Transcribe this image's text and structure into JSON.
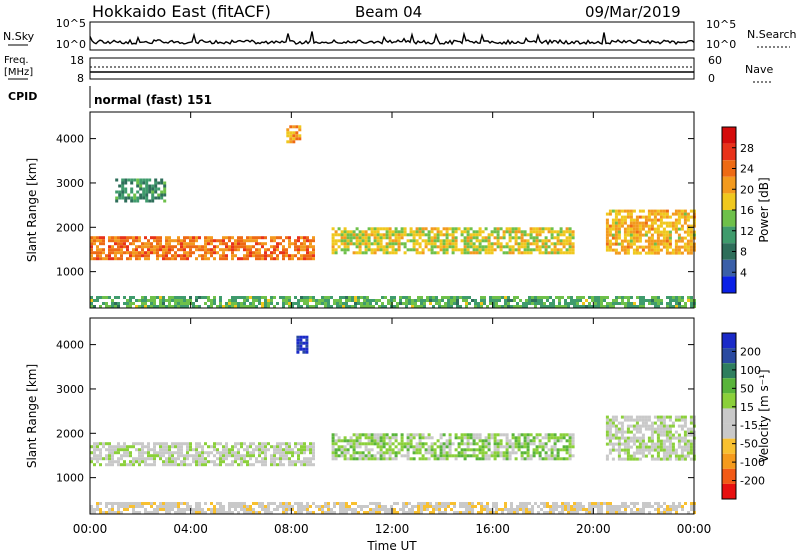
{
  "header": {
    "station": "Hokkaido East (fitACF)",
    "beam": "Beam 04",
    "date": "09/Mar/2019"
  },
  "panels": {
    "nsky": {
      "label": "N.Sky",
      "ticks": [
        "10^5",
        "10^0"
      ],
      "right_label": "N.Search",
      "right_ticks": [
        "10^5",
        "10^0"
      ]
    },
    "freq": {
      "label1": "Freq.",
      "label2": "[MHz]",
      "ticks": [
        "18",
        "8"
      ],
      "right_label": "Nave",
      "right_ticks": [
        "60",
        "0"
      ]
    },
    "cpid": {
      "label": "CPID",
      "text": "normal (fast) 151"
    },
    "power": {
      "ylabel": "Slant Range [km]",
      "yticks": [
        "4000",
        "3000",
        "2000",
        "1000"
      ],
      "cbar_label": "Power [dB]",
      "cbar_ticks": [
        "28",
        "24",
        "20",
        "16",
        "12",
        "8",
        "4"
      ]
    },
    "velocity": {
      "ylabel": "Slant Range [km]",
      "yticks": [
        "4000",
        "3000",
        "2000",
        "1000"
      ],
      "cbar_label": "Velocity [m s⁻¹]",
      "cbar_ticks": [
        "200",
        "100",
        "50",
        "15",
        "-15",
        "-50",
        "-100",
        "-200"
      ]
    }
  },
  "xaxis": {
    "label": "Time UT",
    "ticks": [
      "00:00",
      "04:00",
      "08:00",
      "12:00",
      "16:00",
      "20:00",
      "00:00"
    ]
  },
  "chart_data": [
    {
      "type": "heatmap",
      "title": "Hokkaido East (fitACF)",
      "quantity": "Power",
      "unit": "dB",
      "xlabel": "Time UT",
      "ylabel": "Slant Range [km]",
      "x_range_hours": [
        0,
        24
      ],
      "y_range_km": [
        180,
        4600
      ],
      "colorbar_range": [
        0,
        30
      ],
      "bands": [
        {
          "t0": 0.0,
          "t1": 8.9,
          "r0": 1300,
          "r1": 1800,
          "value": 22
        },
        {
          "t0": 9.6,
          "t1": 19.2,
          "r0": 1450,
          "r1": 2000,
          "value": 16
        },
        {
          "t0": 20.5,
          "t1": 24.0,
          "r0": 1400,
          "r1": 2400,
          "value": 18
        },
        {
          "t0": 0.0,
          "t1": 24.0,
          "r0": 180,
          "r1": 450,
          "value": 12
        },
        {
          "t0": 1.0,
          "t1": 3.0,
          "r0": 2600,
          "r1": 3100,
          "value": 10
        },
        {
          "t0": 7.8,
          "t1": 8.3,
          "r0": 3900,
          "r1": 4300,
          "value": 20
        }
      ]
    },
    {
      "type": "heatmap",
      "title": "Hokkaido East (fitACF)",
      "quantity": "Velocity",
      "unit": "m s^-1",
      "xlabel": "Time UT",
      "ylabel": "Slant Range [km]",
      "x_range_hours": [
        0,
        24
      ],
      "y_range_km": [
        180,
        4600
      ],
      "colorbar_range": [
        -250,
        250
      ],
      "bands": [
        {
          "t0": 0.0,
          "t1": 8.9,
          "r0": 1300,
          "r1": 1800,
          "value": 0
        },
        {
          "t0": 9.6,
          "t1": 19.2,
          "r0": 1450,
          "r1": 2000,
          "value": 40
        },
        {
          "t0": 20.5,
          "t1": 24.0,
          "r0": 1400,
          "r1": 2400,
          "value": 0
        },
        {
          "t0": 0.0,
          "t1": 24.0,
          "r0": 180,
          "r1": 450,
          "value": -40
        },
        {
          "t0": 8.2,
          "t1": 8.6,
          "r0": 3800,
          "r1": 4200,
          "value": 220
        }
      ]
    }
  ],
  "colors": {
    "power": [
      "#0a20e6",
      "#3a5fa8",
      "#2e6e5a",
      "#3f9b6c",
      "#6ec04a",
      "#f0c81e",
      "#f39a1e",
      "#ee6a14",
      "#e8321a",
      "#d40b0b"
    ],
    "velocity": [
      "#e81010",
      "#f25a16",
      "#f59a1c",
      "#f8c030",
      "#c9c9c9",
      "#c9c9c9",
      "#8bd03a",
      "#58b43a",
      "#2e7e5e",
      "#2a4aa0",
      "#1a2ac8"
    ]
  }
}
